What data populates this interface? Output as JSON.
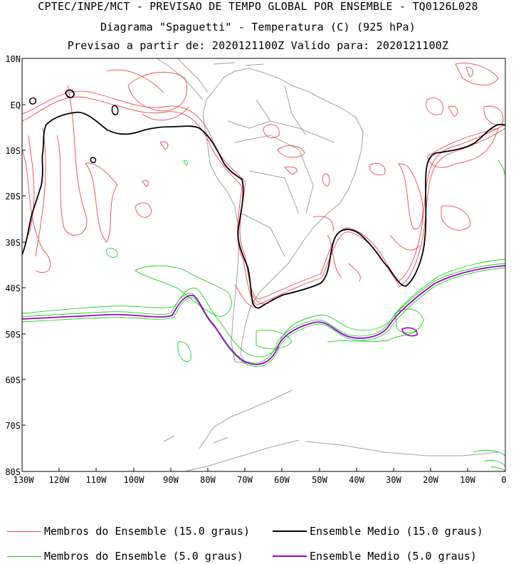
{
  "header": {
    "line1": "CPTEC/INPE/MCT - PREVISAO DE TEMPO GLOBAL POR ENSEMBLE - TQ0126L028",
    "line2": "Diagrama \"Spaguetti\" - Temperatura (C) (925 hPa)",
    "line3": "Previsao a partir de: 2020121100Z  Valido para: 2020121100Z"
  },
  "axes": {
    "lat_labels": [
      "10N",
      "EQ",
      "10S",
      "20S",
      "30S",
      "40S",
      "50S",
      "60S",
      "70S",
      "80S"
    ],
    "lon_labels": [
      "130W",
      "120W",
      "110W",
      "100W",
      "90W",
      "80W",
      "70W",
      "60W",
      "50W",
      "40W",
      "30W",
      "20W",
      "10W",
      "0"
    ]
  },
  "legend": {
    "items": [
      {
        "label": "Membros do Ensemble (15.0 graus)",
        "color": "#f04646"
      },
      {
        "label": "Ensemble Medio (15.0 graus)",
        "color": "#000000"
      },
      {
        "label": "Membros do Ensemble (5.0 graus)",
        "color": "#22cc22"
      },
      {
        "label": "Ensemble Medio (5.0 graus)",
        "color": "#a000c8"
      }
    ]
  },
  "colors": {
    "members_15": "#f04646",
    "mean_15": "#000000",
    "members_5": "#22cc22",
    "mean_5": "#a000c8",
    "coastline": "#a0a0a0"
  }
}
